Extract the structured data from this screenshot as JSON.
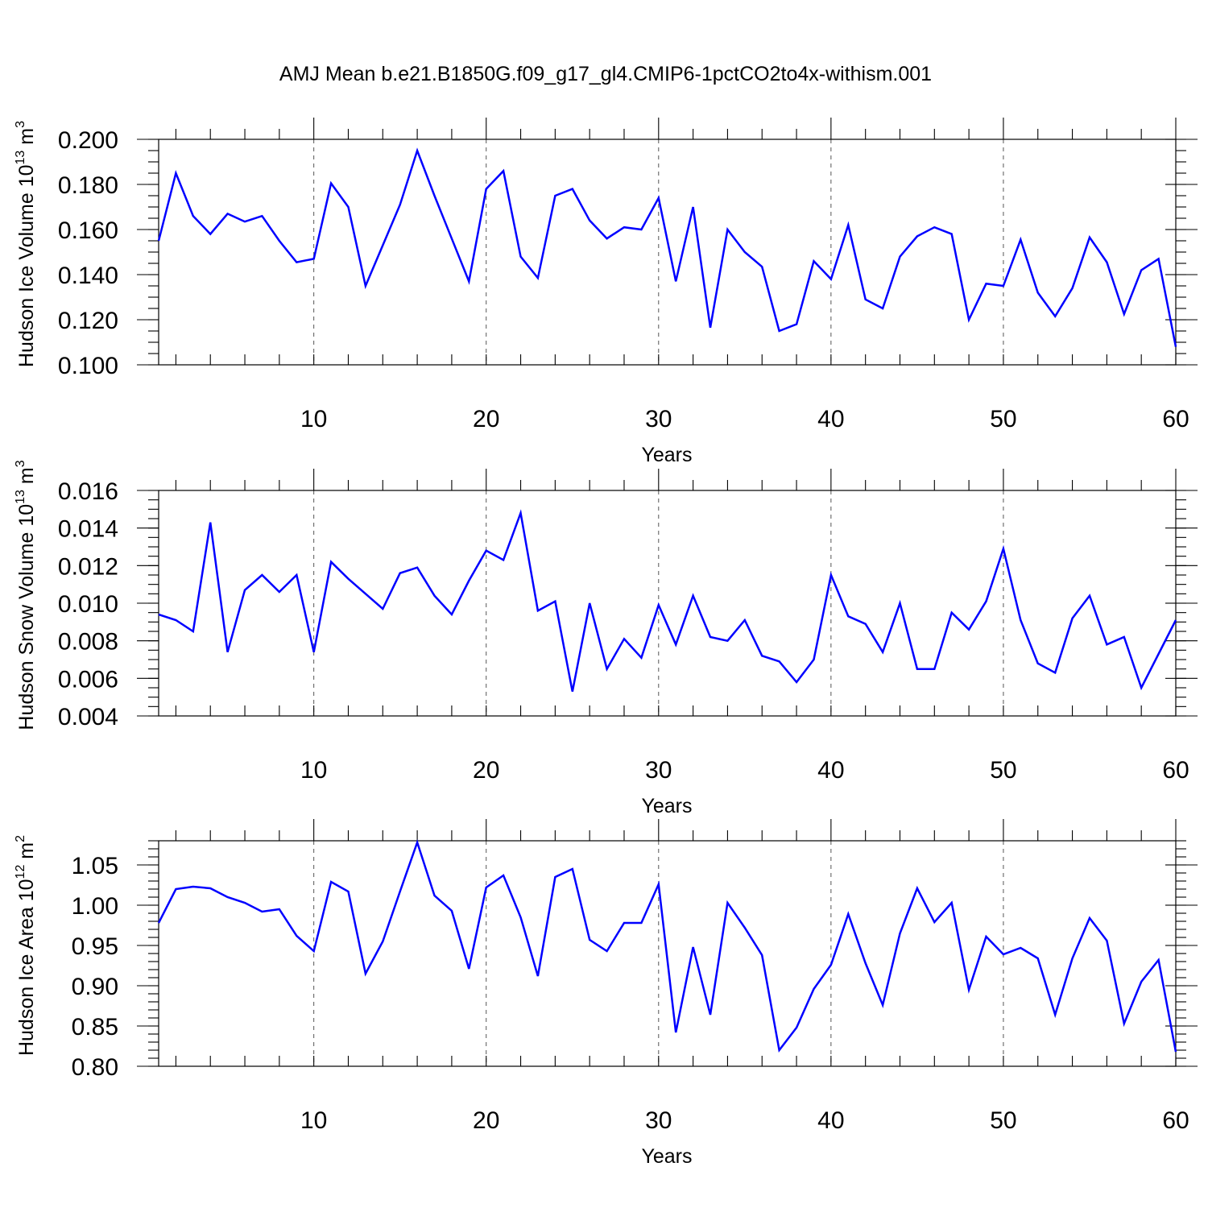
{
  "title": "AMJ Mean b.e21.B1850G.f09_g17_gl4.CMIP6-1pctCO2to4x-withism.001",
  "line_color": "#0000ff",
  "chart_data": [
    {
      "type": "line",
      "ylabel": "Hudson Ice Volume 10",
      "ylabel_exp": "13",
      "ylabel_unit": " m",
      "ylabel_unit_exp": "3",
      "xlabel": "Years",
      "xlim": [
        1,
        60
      ],
      "ylim": [
        0.1,
        0.2
      ],
      "x_ticks": [
        10,
        20,
        30,
        40,
        50,
        60
      ],
      "x_tick_labels": [
        "10",
        "20",
        "30",
        "40",
        "50",
        "60"
      ],
      "y_ticks": [
        0.1,
        0.12,
        0.14,
        0.16,
        0.18,
        0.2
      ],
      "y_tick_labels": [
        "0.100",
        "0.120",
        "0.140",
        "0.160",
        "0.180",
        "0.200"
      ],
      "y_minor_step": 0.005,
      "grid": "dashed vertical at x ticks",
      "series": [
        {
          "name": "Hudson Ice Volume",
          "values": [
            0.155,
            0.185,
            0.166,
            0.158,
            0.167,
            0.1635,
            0.166,
            0.155,
            0.1455,
            0.147,
            0.1805,
            0.17,
            0.135,
            0.153,
            0.171,
            0.195,
            0.175,
            0.156,
            0.137,
            0.178,
            0.186,
            0.148,
            0.1385,
            0.175,
            0.178,
            0.164,
            0.156,
            0.161,
            0.16,
            0.174,
            0.137,
            0.17,
            0.1165,
            0.16,
            0.15,
            0.1435,
            0.115,
            0.118,
            0.146,
            0.138,
            0.162,
            0.129,
            0.125,
            0.148,
            0.157,
            0.161,
            0.158,
            0.12,
            0.136,
            0.135,
            0.1555,
            0.132,
            0.1215,
            0.134,
            0.1565,
            0.1455,
            0.1225,
            0.142,
            0.147,
            0.108
          ]
        }
      ]
    },
    {
      "type": "line",
      "ylabel": "Hudson Snow Volume 10",
      "ylabel_exp": "13",
      "ylabel_unit": " m",
      "ylabel_unit_exp": "3",
      "xlabel": "Years",
      "xlim": [
        1,
        60
      ],
      "ylim": [
        0.004,
        0.016
      ],
      "x_ticks": [
        10,
        20,
        30,
        40,
        50,
        60
      ],
      "x_tick_labels": [
        "10",
        "20",
        "30",
        "40",
        "50",
        "60"
      ],
      "y_ticks": [
        0.004,
        0.006,
        0.008,
        0.01,
        0.012,
        0.014,
        0.016
      ],
      "y_tick_labels": [
        "0.004",
        "0.006",
        "0.008",
        "0.010",
        "0.012",
        "0.014",
        "0.016"
      ],
      "y_minor_step": 0.0005,
      "grid": "dashed vertical at x ticks",
      "series": [
        {
          "name": "Hudson Snow Volume",
          "values": [
            0.0094,
            0.0091,
            0.0085,
            0.0143,
            0.0074,
            0.0107,
            0.0115,
            0.0106,
            0.0115,
            0.0074,
            0.0122,
            0.0113,
            0.0105,
            0.0097,
            0.0116,
            0.0119,
            0.0104,
            0.0094,
            0.0112,
            0.0128,
            0.0123,
            0.0148,
            0.0096,
            0.0101,
            0.0053,
            0.01,
            0.0065,
            0.0081,
            0.0071,
            0.0099,
            0.0078,
            0.0104,
            0.0082,
            0.008,
            0.0091,
            0.0072,
            0.0069,
            0.0058,
            0.007,
            0.0115,
            0.0093,
            0.0089,
            0.0074,
            0.01,
            0.0065,
            0.0065,
            0.0095,
            0.0086,
            0.0101,
            0.0129,
            0.0091,
            0.0068,
            0.0063,
            0.0092,
            0.0104,
            0.0078,
            0.0082,
            0.0055,
            0.0073,
            0.0091
          ]
        }
      ]
    },
    {
      "type": "line",
      "ylabel": "Hudson Ice Area 10",
      "ylabel_exp": "12",
      "ylabel_unit": " m",
      "ylabel_unit_exp": "2",
      "xlabel": "Years",
      "xlim": [
        1,
        60
      ],
      "ylim": [
        0.8,
        1.08
      ],
      "x_ticks": [
        10,
        20,
        30,
        40,
        50,
        60
      ],
      "x_tick_labels": [
        "10",
        "20",
        "30",
        "40",
        "50",
        "60"
      ],
      "y_ticks": [
        0.8,
        0.85,
        0.9,
        0.95,
        1.0,
        1.05
      ],
      "y_tick_labels": [
        "0.80",
        "0.85",
        "0.90",
        "0.95",
        "1.00",
        "1.05"
      ],
      "y_minor_step": 0.01,
      "grid": "dashed vertical at x ticks",
      "series": [
        {
          "name": "Hudson Ice Area",
          "values": [
            0.978,
            1.02,
            1.023,
            1.021,
            1.01,
            1.003,
            0.992,
            0.995,
            0.962,
            0.943,
            1.029,
            1.017,
            0.915,
            0.955,
            1.017,
            1.078,
            1.012,
            0.993,
            0.921,
            1.022,
            1.037,
            0.985,
            0.912,
            1.035,
            1.045,
            0.957,
            0.943,
            0.978,
            0.978,
            1.026,
            0.842,
            0.948,
            0.864,
            1.003,
            0.972,
            0.938,
            0.82,
            0.848,
            0.896,
            0.926,
            0.989,
            0.928,
            0.876,
            0.965,
            1.021,
            0.979,
            1.003,
            0.895,
            0.961,
            0.939,
            0.947,
            0.934,
            0.864,
            0.934,
            0.984,
            0.956,
            0.853,
            0.905,
            0.932,
            0.818
          ]
        }
      ]
    }
  ]
}
